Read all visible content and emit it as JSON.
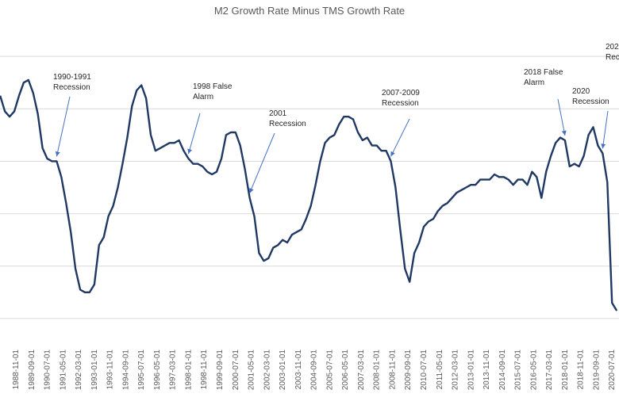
{
  "chart_data": {
    "type": "line",
    "title": "M2 Growth Rate Minus TMS Growth Rate",
    "xlabel": "",
    "ylabel": "",
    "grid": true,
    "legend": "none",
    "line_color": "#203864",
    "x_tick_labels": [
      "1988-11-01",
      "1989-09-01",
      "1990-07-01",
      "1991-05-01",
      "1992-03-01",
      "1993-01-01",
      "1993-11-01",
      "1994-09-01",
      "1995-07-01",
      "1996-05-01",
      "1997-03-01",
      "1998-01-01",
      "1998-11-01",
      "1999-09-01",
      "2000-07-01",
      "2001-05-01",
      "2002-03-01",
      "2003-01-01",
      "2003-11-01",
      "2004-09-01",
      "2005-07-01",
      "2006-05-01",
      "2007-03-01",
      "2008-01-01",
      "2008-11-01",
      "2009-09-01",
      "2010-07-01",
      "2011-05-01",
      "2012-03-01",
      "2013-01-01",
      "2013-11-01",
      "2014-09-01",
      "2015-07-01",
      "2016-05-01",
      "2017-03-01",
      "2018-01-01",
      "2018-11-01",
      "2019-09-01",
      "2020-07-01"
    ],
    "series": [
      {
        "points": [
          [
            "1988-01-01",
            1.25
          ],
          [
            "1988-04-01",
            0.95
          ],
          [
            "1988-07-01",
            0.85
          ],
          [
            "1988-10-01",
            0.95
          ],
          [
            "1989-01-01",
            1.25
          ],
          [
            "1989-04-01",
            1.5
          ],
          [
            "1989-07-01",
            1.55
          ],
          [
            "1989-10-01",
            1.3
          ],
          [
            "1990-01-01",
            0.9
          ],
          [
            "1990-04-01",
            0.25
          ],
          [
            "1990-07-01",
            0.05
          ],
          [
            "1990-10-01",
            0.0
          ],
          [
            "1991-01-01",
            0.0
          ],
          [
            "1991-04-01",
            -0.3
          ],
          [
            "1991-07-01",
            -0.8
          ],
          [
            "1991-10-01",
            -1.35
          ],
          [
            "1992-01-01",
            -2.05
          ],
          [
            "1992-04-01",
            -2.45
          ],
          [
            "1992-07-01",
            -2.5
          ],
          [
            "1992-10-01",
            -2.5
          ],
          [
            "1993-01-01",
            -2.35
          ],
          [
            "1993-04-01",
            -1.6
          ],
          [
            "1993-07-01",
            -1.45
          ],
          [
            "1993-10-01",
            -1.05
          ],
          [
            "1994-01-01",
            -0.85
          ],
          [
            "1994-04-01",
            -0.5
          ],
          [
            "1994-07-01",
            -0.05
          ],
          [
            "1994-10-01",
            0.45
          ],
          [
            "1995-01-01",
            1.05
          ],
          [
            "1995-04-01",
            1.35
          ],
          [
            "1995-07-01",
            1.45
          ],
          [
            "1995-10-01",
            1.2
          ],
          [
            "1996-01-01",
            0.5
          ],
          [
            "1996-04-01",
            0.2
          ],
          [
            "1996-07-01",
            0.25
          ],
          [
            "1996-10-01",
            0.3
          ],
          [
            "1997-01-01",
            0.35
          ],
          [
            "1997-04-01",
            0.35
          ],
          [
            "1997-07-01",
            0.4
          ],
          [
            "1997-10-01",
            0.2
          ],
          [
            "1998-01-01",
            0.05
          ],
          [
            "1998-04-01",
            -0.05
          ],
          [
            "1998-07-01",
            -0.05
          ],
          [
            "1998-10-01",
            -0.1
          ],
          [
            "1999-01-01",
            -0.2
          ],
          [
            "1999-04-01",
            -0.25
          ],
          [
            "1999-07-01",
            -0.2
          ],
          [
            "1999-10-01",
            0.05
          ],
          [
            "2000-01-01",
            0.5
          ],
          [
            "2000-04-01",
            0.55
          ],
          [
            "2000-07-01",
            0.55
          ],
          [
            "2000-10-01",
            0.3
          ],
          [
            "2001-01-01",
            -0.15
          ],
          [
            "2001-04-01",
            -0.7
          ],
          [
            "2001-07-01",
            -1.05
          ],
          [
            "2001-10-01",
            -1.75
          ],
          [
            "2002-01-01",
            -1.9
          ],
          [
            "2002-04-01",
            -1.85
          ],
          [
            "2002-07-01",
            -1.65
          ],
          [
            "2002-10-01",
            -1.6
          ],
          [
            "2003-01-01",
            -1.5
          ],
          [
            "2003-04-01",
            -1.55
          ],
          [
            "2003-07-01",
            -1.4
          ],
          [
            "2003-10-01",
            -1.35
          ],
          [
            "2004-01-01",
            -1.3
          ],
          [
            "2004-04-01",
            -1.1
          ],
          [
            "2004-07-01",
            -0.85
          ],
          [
            "2004-10-01",
            -0.45
          ],
          [
            "2005-01-01",
            0.0
          ],
          [
            "2005-04-01",
            0.35
          ],
          [
            "2005-07-01",
            0.45
          ],
          [
            "2005-10-01",
            0.5
          ],
          [
            "2006-01-01",
            0.7
          ],
          [
            "2006-04-01",
            0.85
          ],
          [
            "2006-07-01",
            0.85
          ],
          [
            "2006-10-01",
            0.8
          ],
          [
            "2007-01-01",
            0.55
          ],
          [
            "2007-04-01",
            0.4
          ],
          [
            "2007-07-01",
            0.45
          ],
          [
            "2007-10-01",
            0.3
          ],
          [
            "2008-01-01",
            0.3
          ],
          [
            "2008-04-01",
            0.2
          ],
          [
            "2008-07-01",
            0.2
          ],
          [
            "2008-10-01",
            0.0
          ],
          [
            "2009-01-01",
            -0.5
          ],
          [
            "2009-04-01",
            -1.3
          ],
          [
            "2009-07-01",
            -2.05
          ],
          [
            "2009-10-01",
            -2.3
          ],
          [
            "2010-01-01",
            -1.75
          ],
          [
            "2010-04-01",
            -1.55
          ],
          [
            "2010-07-01",
            -1.25
          ],
          [
            "2010-10-01",
            -1.15
          ],
          [
            "2011-01-01",
            -1.1
          ],
          [
            "2011-04-01",
            -0.95
          ],
          [
            "2011-07-01",
            -0.85
          ],
          [
            "2011-10-01",
            -0.8
          ],
          [
            "2012-01-01",
            -0.7
          ],
          [
            "2012-04-01",
            -0.6
          ],
          [
            "2012-07-01",
            -0.55
          ],
          [
            "2012-10-01",
            -0.5
          ],
          [
            "2013-01-01",
            -0.45
          ],
          [
            "2013-04-01",
            -0.45
          ],
          [
            "2013-07-01",
            -0.35
          ],
          [
            "2013-10-01",
            -0.35
          ],
          [
            "2014-01-01",
            -0.35
          ],
          [
            "2014-04-01",
            -0.25
          ],
          [
            "2014-07-01",
            -0.3
          ],
          [
            "2014-10-01",
            -0.3
          ],
          [
            "2015-01-01",
            -0.35
          ],
          [
            "2015-04-01",
            -0.45
          ],
          [
            "2015-07-01",
            -0.35
          ],
          [
            "2015-10-01",
            -0.35
          ],
          [
            "2016-01-01",
            -0.45
          ],
          [
            "2016-04-01",
            -0.2
          ],
          [
            "2016-07-01",
            -0.3
          ],
          [
            "2016-10-01",
            -0.7
          ],
          [
            "2017-01-01",
            -0.2
          ],
          [
            "2017-04-01",
            0.1
          ],
          [
            "2017-07-01",
            0.35
          ],
          [
            "2017-10-01",
            0.45
          ],
          [
            "2018-01-01",
            0.4
          ],
          [
            "2018-04-01",
            -0.1
          ],
          [
            "2018-07-01",
            -0.05
          ],
          [
            "2018-10-01",
            -0.1
          ],
          [
            "2019-01-01",
            0.1
          ],
          [
            "2019-04-01",
            0.5
          ],
          [
            "2019-07-01",
            0.65
          ],
          [
            "2019-10-01",
            0.3
          ],
          [
            "2020-01-01",
            0.15
          ],
          [
            "2020-04-01",
            -0.4
          ],
          [
            "2020-07-01",
            -2.7
          ],
          [
            "2020-10-01",
            -2.85
          ]
        ]
      }
    ],
    "ylim": [
      -3.5,
      2.5
    ],
    "y_gridlines": [
      -3,
      -2,
      -1,
      0,
      1,
      2
    ],
    "annotations": [
      {
        "lines": [
          "1990-1991",
          "Recession"
        ],
        "target": "1991-01-01"
      },
      {
        "lines": [
          "1998 False",
          "Alarm"
        ],
        "target": "1998-01-01"
      },
      {
        "lines": [
          "2001",
          "Recession"
        ],
        "target": "2001-04-01"
      },
      {
        "lines": [
          "2007-2009",
          "Recession"
        ],
        "target": "2008-10-01"
      },
      {
        "lines": [
          "2018 False",
          "Alarm"
        ],
        "target": "2018-01-01"
      },
      {
        "lines": [
          "2020",
          "Recession"
        ],
        "target": "2020-01-01"
      },
      {
        "lines": [
          "202",
          "Rec"
        ],
        "target": null
      }
    ]
  }
}
